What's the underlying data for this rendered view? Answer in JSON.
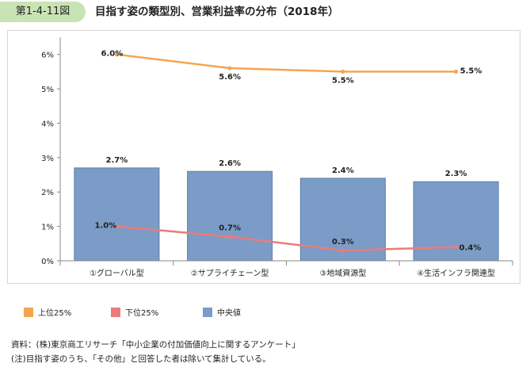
{
  "header": {
    "badge": "第1-4-11図",
    "title": "目指す姿の類型別、営業利益率の分布（2018年）"
  },
  "colors": {
    "upper": "#f6a54e",
    "lower": "#ec7b7b",
    "median_fill": "#7b9cc6",
    "median_stroke": "#5d7fac"
  },
  "chart_data": {
    "type": "bar",
    "categories": [
      "①グローバル型",
      "②サプライチェーン型",
      "③地域資源型",
      "④生活インフラ関連型"
    ],
    "series": [
      {
        "name": "上位25%",
        "type": "line",
        "values": [
          6.0,
          5.6,
          5.5,
          5.5
        ],
        "labels": [
          "6.0%",
          "5.6%",
          "5.5%",
          "5.5%"
        ]
      },
      {
        "name": "下位25%",
        "type": "line",
        "values": [
          1.0,
          0.7,
          0.3,
          0.4
        ],
        "labels": [
          "1.0%",
          "0.7%",
          "0.3%",
          "0.4%"
        ]
      },
      {
        "name": "中央値",
        "type": "bar",
        "values": [
          2.7,
          2.6,
          2.4,
          2.3
        ],
        "labels": [
          "2.7%",
          "2.6%",
          "2.4%",
          "2.3%"
        ]
      }
    ],
    "yticks": [
      "0%",
      "1%",
      "2%",
      "3%",
      "4%",
      "5%",
      "6%"
    ],
    "ylim": [
      0,
      6.5
    ],
    "grid": false,
    "legend": "bottom-left"
  },
  "legend": [
    {
      "label": "上位25%",
      "color": "#f6a54e"
    },
    {
      "label": "下位25%",
      "color": "#ec7b7b"
    },
    {
      "label": "中央値",
      "color": "#7b9cc6"
    }
  ],
  "notes": [
    "資料：(株)東京商工リサーチ「中小企業の付加価値向上に関するアンケート」",
    "(注)目指す姿のうち、「その他」と回答した者は除いて集計している。"
  ]
}
